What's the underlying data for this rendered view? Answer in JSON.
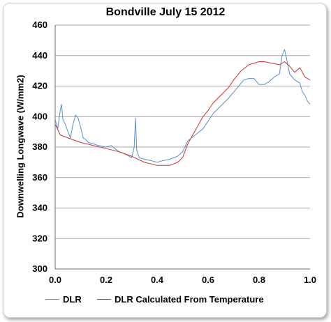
{
  "chart_data": {
    "type": "line",
    "title": "Bondville July 15 2012",
    "xlabel": "",
    "ylabel": "Downwelling Longwave (W/mm2)",
    "xlim": [
      0.0,
      1.0
    ],
    "ylim": [
      300,
      460
    ],
    "x_ticks": [
      "0.0",
      "0.2",
      "0.4",
      "0.6",
      "0.8",
      "1.0"
    ],
    "y_ticks": [
      "300",
      "320",
      "340",
      "360",
      "380",
      "400",
      "420",
      "440",
      "460"
    ],
    "grid": "horizontal",
    "legend_position": "bottom",
    "series": [
      {
        "name": "DLR",
        "color": "#5b8fc7",
        "x": [
          0.0,
          0.01,
          0.02,
          0.025,
          0.03,
          0.04,
          0.05,
          0.06,
          0.07,
          0.08,
          0.09,
          0.1,
          0.11,
          0.12,
          0.13,
          0.15,
          0.17,
          0.2,
          0.22,
          0.25,
          0.28,
          0.3,
          0.31,
          0.315,
          0.32,
          0.33,
          0.35,
          0.38,
          0.4,
          0.42,
          0.45,
          0.48,
          0.5,
          0.52,
          0.55,
          0.58,
          0.6,
          0.62,
          0.65,
          0.68,
          0.7,
          0.72,
          0.74,
          0.76,
          0.78,
          0.8,
          0.82,
          0.84,
          0.86,
          0.88,
          0.89,
          0.9,
          0.91,
          0.92,
          0.94,
          0.96,
          0.97,
          0.98,
          0.99,
          1.0
        ],
        "y": [
          398,
          392,
          404,
          408,
          398,
          395,
          390,
          386,
          395,
          401,
          399,
          393,
          386,
          385,
          383,
          382,
          381,
          380,
          381,
          377,
          375,
          373,
          380,
          399,
          378,
          373,
          372,
          371,
          370,
          371,
          372,
          374,
          377,
          384,
          388,
          392,
          397,
          402,
          407,
          412,
          416,
          420,
          424,
          425,
          425,
          421,
          421,
          423,
          426,
          428,
          440,
          444,
          436,
          428,
          424,
          422,
          416,
          414,
          410,
          408
        ]
      },
      {
        "name": "DLR Calculated From Temperature",
        "color": "#cc3333",
        "x": [
          0.0,
          0.02,
          0.05,
          0.1,
          0.15,
          0.2,
          0.25,
          0.3,
          0.35,
          0.4,
          0.45,
          0.48,
          0.5,
          0.52,
          0.55,
          0.58,
          0.6,
          0.62,
          0.65,
          0.68,
          0.7,
          0.73,
          0.76,
          0.8,
          0.82,
          0.85,
          0.88,
          0.9,
          0.92,
          0.94,
          0.96,
          0.98,
          1.0
        ],
        "y": [
          395,
          388,
          386,
          383,
          381,
          379,
          377,
          374,
          370,
          368,
          368,
          370,
          373,
          382,
          391,
          400,
          404,
          409,
          414,
          419,
          424,
          430,
          434,
          436,
          436,
          435,
          434,
          436,
          433,
          429,
          432,
          426,
          424
        ]
      }
    ]
  }
}
